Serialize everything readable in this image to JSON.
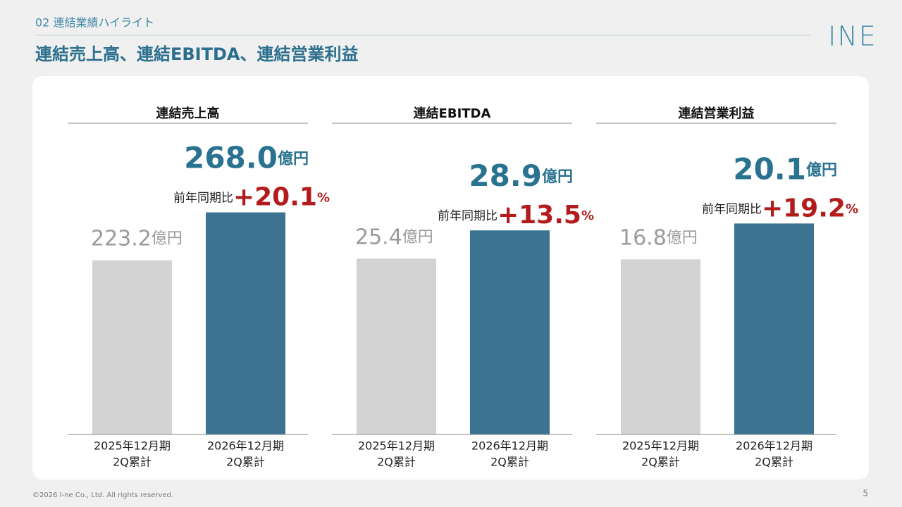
{
  "header": {
    "section": "02 連結業績ハイライト",
    "title": "連結売上高、連結EBITDA、連結営業利益",
    "logo": "INE"
  },
  "footer": {
    "copyright": "©2026 I-ne Co., Ltd. All rights reserved.",
    "page": "5"
  },
  "chart_data": [
    {
      "type": "bar",
      "title": "連結売上高",
      "categories": [
        [
          "2025年12月期",
          "2Q累計"
        ],
        [
          "2026年12月期",
          "2Q累計"
        ]
      ],
      "values": [
        223.2,
        268.0
      ],
      "value_labels": [
        "223.2",
        "268.0"
      ],
      "unit": "億円",
      "colors": [
        "#d3d3d3",
        "#3b7390"
      ],
      "ylim": [
        60,
        335
      ],
      "change": {
        "label": "前年同期比",
        "value": 20.1,
        "text": "+20.1",
        "unit": "%"
      }
    },
    {
      "type": "bar",
      "title": "連結EBITDA",
      "categories": [
        [
          "2025年12月期",
          "2Q累計"
        ],
        [
          "2026年12月期",
          "2Q累計"
        ]
      ],
      "values": [
        25.4,
        28.9
      ],
      "value_labels": [
        "25.4",
        "28.9"
      ],
      "unit": "億円",
      "colors": [
        "#d3d3d3",
        "#3b7390"
      ],
      "ylim": [
        3.6,
        40
      ],
      "change": {
        "label": "前年同期比",
        "value": 13.5,
        "text": "+13.5",
        "unit": "%"
      }
    },
    {
      "type": "bar",
      "title": "連結営業利益",
      "categories": [
        [
          "2025年12月期",
          "2Q累計"
        ],
        [
          "2026年12月期",
          "2Q累計"
        ]
      ],
      "values": [
        16.8,
        20.1
      ],
      "value_labels": [
        "16.8",
        "20.1"
      ],
      "unit": "億円",
      "colors": [
        "#d3d3d3",
        "#3b7390"
      ],
      "ylim": [
        0.7,
        27.7
      ],
      "change": {
        "label": "前年同期比",
        "value": 19.2,
        "text": "+19.2",
        "unit": "%"
      }
    }
  ]
}
